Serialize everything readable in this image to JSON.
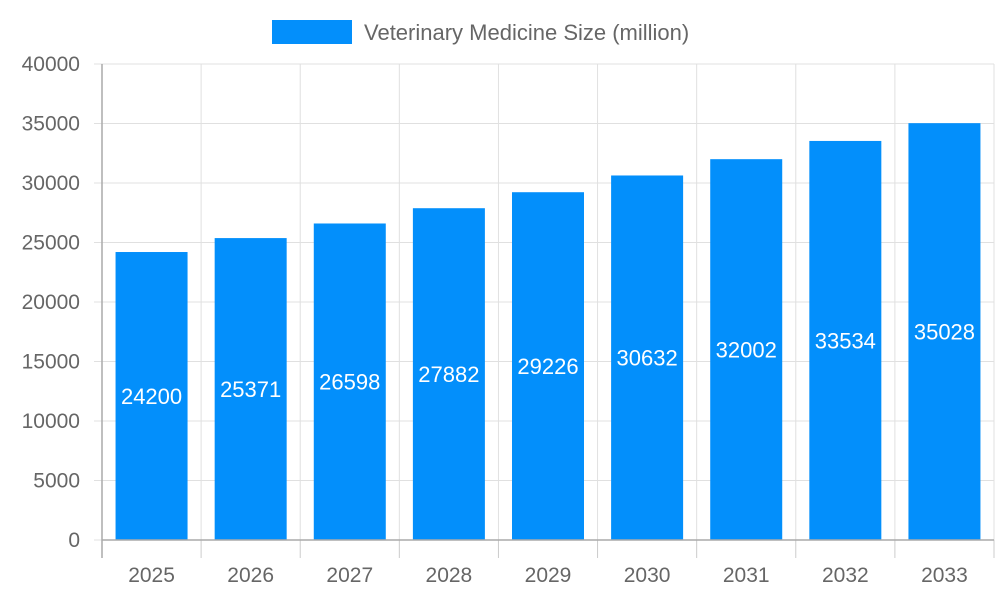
{
  "chart_data": {
    "type": "bar",
    "categories": [
      "2025",
      "2026",
      "2027",
      "2028",
      "2029",
      "2030",
      "2031",
      "2032",
      "2033"
    ],
    "series": [
      {
        "name": "Veterinary Medicine Size (million)",
        "values": [
          24200,
          25371,
          26598,
          27882,
          29226,
          30632,
          32002,
          33534,
          35028
        ],
        "color": "#038ffb"
      }
    ],
    "ylim": [
      0,
      40000
    ],
    "yticks": [
      0,
      5000,
      10000,
      15000,
      20000,
      25000,
      30000,
      35000,
      40000
    ],
    "grid": true,
    "legend_position": "top",
    "data_labels": true,
    "title": "",
    "xlabel": "",
    "ylabel": ""
  }
}
